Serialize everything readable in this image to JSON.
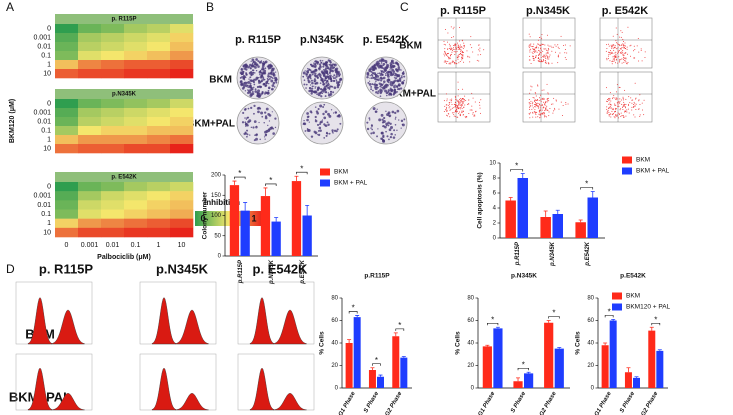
{
  "panels": {
    "labels": [
      "A",
      "B",
      "C",
      "D"
    ],
    "b": {
      "columns": [
        "p. R115P",
        "p.N345K",
        "p. E542K"
      ],
      "rows": [
        "BKM",
        "BKM+PAL"
      ]
    },
    "c": {
      "columns": [
        "p. R115P",
        "p.N345K",
        "p. E542K"
      ],
      "rows": [
        "BKM",
        "BKM+PAL"
      ]
    },
    "d": {
      "columns": [
        "p. R115P",
        "p.N345K",
        "p. E542K"
      ],
      "rows": [
        "BKM",
        "BKM+PAL"
      ]
    }
  },
  "chart_data": [
    {
      "type": "heatmap",
      "title": "p. R115P",
      "rows": [
        "0",
        "0.001",
        "0.01",
        "0.1",
        "1",
        "10"
      ],
      "vlim": [
        0,
        1
      ],
      "colormap": [
        "#2f9e4f",
        "#f4e66c",
        "#e8231a"
      ],
      "values": [
        [
          0,
          0.15,
          0.2,
          0.3,
          0.35,
          0.45
        ],
        [
          0.1,
          0.3,
          0.35,
          0.4,
          0.45,
          0.55
        ],
        [
          0.15,
          0.35,
          0.4,
          0.45,
          0.5,
          0.6
        ],
        [
          0.2,
          0.45,
          0.5,
          0.55,
          0.6,
          0.7
        ],
        [
          0.6,
          0.75,
          0.8,
          0.85,
          0.85,
          0.9
        ],
        [
          0.85,
          0.9,
          0.9,
          0.95,
          0.95,
          1
        ]
      ]
    },
    {
      "type": "heatmap",
      "title": "p.N345K",
      "ylabel": "BKM120 (μM)",
      "rows": [
        "0",
        "0.001",
        "0.01",
        "0.1",
        "1",
        "10"
      ],
      "vlim": [
        0,
        1
      ],
      "colormap": [
        "#2f9e4f",
        "#f4e66c",
        "#e8231a"
      ],
      "values": [
        [
          0,
          0.15,
          0.2,
          0.25,
          0.3,
          0.4
        ],
        [
          0.1,
          0.3,
          0.35,
          0.4,
          0.45,
          0.5
        ],
        [
          0.15,
          0.35,
          0.4,
          0.45,
          0.5,
          0.55
        ],
        [
          0.3,
          0.5,
          0.55,
          0.55,
          0.6,
          0.6
        ],
        [
          0.6,
          0.7,
          0.7,
          0.7,
          0.75,
          0.8
        ],
        [
          0.8,
          0.85,
          0.85,
          0.9,
          0.9,
          1
        ]
      ]
    },
    {
      "type": "heatmap",
      "title": "p. E542K",
      "rows": [
        "0",
        "0.001",
        "0.01",
        "0.1",
        "1",
        "10"
      ],
      "columns": [
        "0",
        "0.001",
        "0.01",
        "0.1",
        "1",
        "10"
      ],
      "xlabel": "Palbociclib (μM)",
      "vlim": [
        0,
        1
      ],
      "colormap": [
        "#2f9e4f",
        "#f4e66c",
        "#e8231a"
      ],
      "colorbar": {
        "title": "Inhibition",
        "ticks": [
          0,
          1
        ]
      },
      "values": [
        [
          0,
          0.15,
          0.2,
          0.3,
          0.35,
          0.4
        ],
        [
          0.1,
          0.3,
          0.4,
          0.45,
          0.5,
          0.55
        ],
        [
          0.15,
          0.4,
          0.45,
          0.5,
          0.55,
          0.6
        ],
        [
          0.2,
          0.45,
          0.5,
          0.55,
          0.6,
          0.65
        ],
        [
          0.55,
          0.7,
          0.75,
          0.8,
          0.85,
          0.9
        ],
        [
          0.8,
          0.9,
          0.9,
          0.95,
          0.95,
          1
        ]
      ]
    },
    {
      "type": "bar",
      "ylabel": "Colony number",
      "categories": [
        "p.R115P",
        "p.N345K",
        "p.E542K"
      ],
      "ylim": [
        0,
        200
      ],
      "yticks": [
        0,
        50,
        100,
        150,
        200
      ],
      "legend": "top right",
      "series": [
        {
          "name": "BKM",
          "color": "#ff2a1a",
          "values": [
            175,
            148,
            185
          ],
          "errors": [
            10,
            20,
            12
          ]
        },
        {
          "name": "BKM + PAL",
          "color": "#1f3dff",
          "values": [
            112,
            85,
            100
          ],
          "errors": [
            20,
            10,
            25
          ]
        }
      ],
      "significance": [
        "*",
        "*",
        "*"
      ]
    },
    {
      "type": "bar",
      "ylabel": "Cell apoptosis (%)",
      "categories": [
        "p.R115P",
        "p.N345K",
        "p.E542K"
      ],
      "ylim": [
        0,
        10
      ],
      "yticks": [
        0,
        2,
        4,
        6,
        8,
        10
      ],
      "legend": "top right",
      "series": [
        {
          "name": "BKM",
          "color": "#ff2a1a",
          "values": [
            5,
            2.8,
            2.1
          ],
          "errors": [
            0.4,
            0.8,
            0.3
          ]
        },
        {
          "name": "BKM + PAL",
          "color": "#1f3dff",
          "values": [
            8,
            3.2,
            5.4
          ],
          "errors": [
            0.6,
            0.5,
            0.8
          ]
        }
      ],
      "significance": [
        "*",
        null,
        "*"
      ]
    },
    {
      "type": "bar",
      "title": "p.R115P",
      "ylabel": "% Cells",
      "categories": [
        "G1 Phase",
        "S Phase",
        "G2 Phase"
      ],
      "ylim": [
        0,
        80
      ],
      "yticks": [
        0,
        20,
        40,
        60,
        80
      ],
      "series": [
        {
          "color": "#ff2a1a",
          "values": [
            40,
            16,
            46
          ],
          "errors": [
            3,
            2,
            3
          ]
        },
        {
          "color": "#1f3dff",
          "values": [
            63,
            10,
            27
          ],
          "errors": [
            1.5,
            1.5,
            1
          ]
        }
      ],
      "significance": [
        "*",
        "*",
        "*"
      ]
    },
    {
      "type": "bar",
      "title": "p.N345K",
      "ylabel": "% Cells",
      "categories": [
        "G1 Phase",
        "S Phase",
        "G2 Phase"
      ],
      "ylim": [
        0,
        80
      ],
      "yticks": [
        0,
        20,
        40,
        60,
        80
      ],
      "series": [
        {
          "color": "#ff2a1a",
          "values": [
            37,
            6,
            58
          ],
          "errors": [
            1,
            3,
            2
          ]
        },
        {
          "color": "#1f3dff",
          "values": [
            53,
            13,
            35
          ],
          "errors": [
            1,
            1,
            1
          ]
        }
      ],
      "significance": [
        "*",
        "*",
        "*"
      ]
    },
    {
      "type": "bar",
      "title": "p.E542K",
      "ylabel": "% Cells",
      "categories": [
        "G1 Phase",
        "S Phase",
        "G2 Phase"
      ],
      "ylim": [
        0,
        80
      ],
      "yticks": [
        0,
        20,
        40,
        60,
        80
      ],
      "legend": "top right",
      "series": [
        {
          "name": "BKM",
          "color": "#ff2a1a",
          "values": [
            38,
            14,
            51
          ],
          "errors": [
            2,
            4,
            3
          ]
        },
        {
          "name": "BKM120 + PAL",
          "color": "#1f3dff",
          "values": [
            60,
            9,
            33
          ],
          "errors": [
            1,
            1,
            1
          ]
        }
      ],
      "significance": [
        "*",
        null,
        "*"
      ]
    }
  ]
}
